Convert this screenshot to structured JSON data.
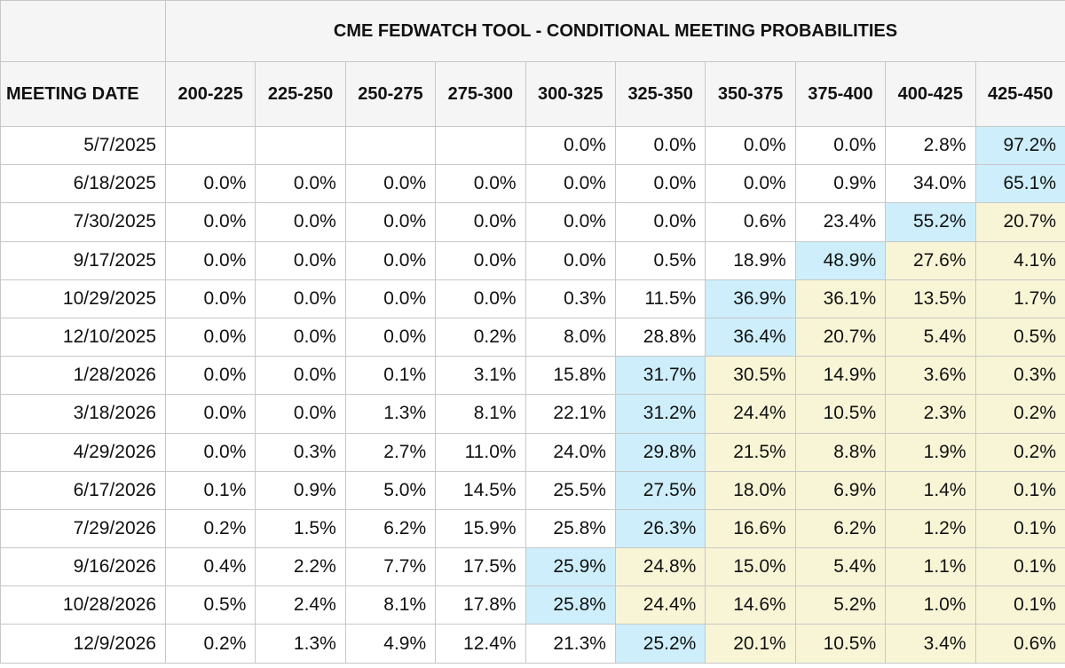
{
  "title": "CME FEDWATCH TOOL - CONDITIONAL MEETING PROBABILITIES",
  "date_header": "MEETING DATE",
  "columns": [
    "200-225",
    "225-250",
    "250-275",
    "275-300",
    "300-325",
    "325-350",
    "350-375",
    "375-400",
    "400-425",
    "425-450"
  ],
  "highlight_colors": {
    "max": "#cdeefa",
    "above_max": "#f8f5d6"
  },
  "rows": [
    {
      "date": "5/7/2025",
      "values": [
        "",
        "",
        "",
        "",
        "0.0%",
        "0.0%",
        "0.0%",
        "0.0%",
        "2.8%",
        "97.2%"
      ],
      "max_index": 9
    },
    {
      "date": "6/18/2025",
      "values": [
        "0.0%",
        "0.0%",
        "0.0%",
        "0.0%",
        "0.0%",
        "0.0%",
        "0.0%",
        "0.9%",
        "34.0%",
        "65.1%"
      ],
      "max_index": 9
    },
    {
      "date": "7/30/2025",
      "values": [
        "0.0%",
        "0.0%",
        "0.0%",
        "0.0%",
        "0.0%",
        "0.0%",
        "0.6%",
        "23.4%",
        "55.2%",
        "20.7%"
      ],
      "max_index": 8
    },
    {
      "date": "9/17/2025",
      "values": [
        "0.0%",
        "0.0%",
        "0.0%",
        "0.0%",
        "0.0%",
        "0.5%",
        "18.9%",
        "48.9%",
        "27.6%",
        "4.1%"
      ],
      "max_index": 7
    },
    {
      "date": "10/29/2025",
      "values": [
        "0.0%",
        "0.0%",
        "0.0%",
        "0.0%",
        "0.3%",
        "11.5%",
        "36.9%",
        "36.1%",
        "13.5%",
        "1.7%"
      ],
      "max_index": 6
    },
    {
      "date": "12/10/2025",
      "values": [
        "0.0%",
        "0.0%",
        "0.0%",
        "0.2%",
        "8.0%",
        "28.8%",
        "36.4%",
        "20.7%",
        "5.4%",
        "0.5%"
      ],
      "max_index": 6
    },
    {
      "date": "1/28/2026",
      "values": [
        "0.0%",
        "0.0%",
        "0.1%",
        "3.1%",
        "15.8%",
        "31.7%",
        "30.5%",
        "14.9%",
        "3.6%",
        "0.3%"
      ],
      "max_index": 5
    },
    {
      "date": "3/18/2026",
      "values": [
        "0.0%",
        "0.0%",
        "1.3%",
        "8.1%",
        "22.1%",
        "31.2%",
        "24.4%",
        "10.5%",
        "2.3%",
        "0.2%"
      ],
      "max_index": 5
    },
    {
      "date": "4/29/2026",
      "values": [
        "0.0%",
        "0.3%",
        "2.7%",
        "11.0%",
        "24.0%",
        "29.8%",
        "21.5%",
        "8.8%",
        "1.9%",
        "0.2%"
      ],
      "max_index": 5
    },
    {
      "date": "6/17/2026",
      "values": [
        "0.1%",
        "0.9%",
        "5.0%",
        "14.5%",
        "25.5%",
        "27.5%",
        "18.0%",
        "6.9%",
        "1.4%",
        "0.1%"
      ],
      "max_index": 5
    },
    {
      "date": "7/29/2026",
      "values": [
        "0.2%",
        "1.5%",
        "6.2%",
        "15.9%",
        "25.8%",
        "26.3%",
        "16.6%",
        "6.2%",
        "1.2%",
        "0.1%"
      ],
      "max_index": 5
    },
    {
      "date": "9/16/2026",
      "values": [
        "0.4%",
        "2.2%",
        "7.7%",
        "17.5%",
        "25.9%",
        "24.8%",
        "15.0%",
        "5.4%",
        "1.1%",
        "0.1%"
      ],
      "max_index": 4
    },
    {
      "date": "10/28/2026",
      "values": [
        "0.5%",
        "2.4%",
        "8.1%",
        "17.8%",
        "25.8%",
        "24.4%",
        "14.6%",
        "5.2%",
        "1.0%",
        "0.1%"
      ],
      "max_index": 4
    },
    {
      "date": "12/9/2026",
      "values": [
        "0.2%",
        "1.3%",
        "4.9%",
        "12.4%",
        "21.3%",
        "25.2%",
        "20.1%",
        "10.5%",
        "3.4%",
        "0.6%"
      ],
      "max_index": 5
    }
  ]
}
